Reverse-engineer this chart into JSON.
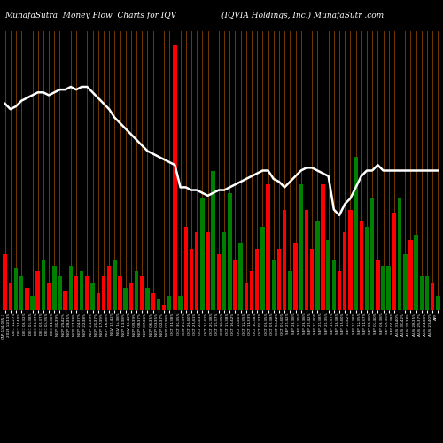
{
  "title_left": "MunafaSutra  Money Flow  Charts for IQV",
  "title_right": "(IQVIA Holdings, Inc.) MunafaSutr .com",
  "background_color": "#000000",
  "bar_grid_color": "#8B4500",
  "line_color": "#ffffff",
  "bar_colors": [
    "red",
    "red",
    "green",
    "green",
    "red",
    "green",
    "red",
    "green",
    "red",
    "green",
    "green",
    "red",
    "green",
    "red",
    "green",
    "red",
    "green",
    "red",
    "red",
    "red",
    "green",
    "red",
    "green",
    "red",
    "green",
    "red",
    "green",
    "red",
    "green",
    "red",
    "green",
    "red",
    "green",
    "red",
    "red",
    "red",
    "green",
    "red",
    "green",
    "red",
    "green",
    "green",
    "red",
    "green",
    "red",
    "red",
    "red",
    "green",
    "red",
    "green",
    "red",
    "red",
    "green",
    "red",
    "green",
    "red",
    "red",
    "green",
    "red",
    "green",
    "green",
    "red",
    "red",
    "red",
    "green",
    "red",
    "green",
    "green",
    "red",
    "green",
    "green",
    "red",
    "green",
    "green",
    "red",
    "green",
    "green",
    "green",
    "red",
    "green"
  ],
  "bar_heights": [
    20,
    10,
    15,
    12,
    8,
    5,
    14,
    18,
    10,
    16,
    12,
    7,
    16,
    12,
    14,
    12,
    10,
    6,
    12,
    16,
    18,
    12,
    8,
    10,
    14,
    12,
    8,
    6,
    4,
    2,
    5,
    95,
    5,
    30,
    22,
    28,
    40,
    28,
    50,
    20,
    28,
    42,
    18,
    24,
    10,
    14,
    22,
    30,
    45,
    18,
    22,
    36,
    14,
    24,
    45,
    36,
    22,
    32,
    45,
    25,
    18,
    14,
    28,
    36,
    55,
    32,
    30,
    40,
    18,
    16,
    16,
    35,
    40,
    20,
    25,
    27,
    12,
    12,
    10,
    5
  ],
  "line_values": [
    74,
    72,
    73,
    75,
    76,
    77,
    78,
    78,
    77,
    78,
    79,
    79,
    80,
    79,
    80,
    80,
    78,
    76,
    74,
    72,
    69,
    67,
    65,
    63,
    61,
    59,
    57,
    56,
    55,
    54,
    53,
    52,
    44,
    44,
    43,
    43,
    42,
    41,
    42,
    43,
    43,
    44,
    45,
    46,
    47,
    48,
    49,
    50,
    50,
    47,
    46,
    44,
    46,
    48,
    50,
    51,
    51,
    50,
    49,
    48,
    36,
    34,
    38,
    40,
    44,
    48,
    50,
    50,
    52,
    50,
    50,
    50,
    50,
    50,
    50,
    50,
    50,
    50,
    50,
    50
  ],
  "x_labels": [
    "CAP:104,085.3",
    "2023 12/13%",
    "DEC 12,27%",
    "DEC 11,40%",
    "DEC 08,32%",
    "DEC 07,38%",
    "DEC 06,37%",
    "DEC 05,37%",
    "DEC 04,35%",
    "DEC 01,36%",
    "NOV 30,39%",
    "NOV 29,42%",
    "NOV 28,35%",
    "NOV 27,38%",
    "NOV 24,37%",
    "NOV 22,38%",
    "NOV 21,39%",
    "NOV 20,37%",
    "NOV 17,39%",
    "NOV 16,38%",
    "NOV 15,42%",
    "NOV 14,38%",
    "NOV 13,38%",
    "NOV 10,42%",
    "NOV 09,39%",
    "NOV 08,37%",
    "NOV 07,36%",
    "NOV 06,35%",
    "NOV 03,35%",
    "NOV 02,37%",
    "NOV 01,38%",
    "OCT 31,38%",
    "OCT 30,35%",
    "OCT 27,37%",
    "OCT 26,40%",
    "OCT 25,41%",
    "OCT 24,43%",
    "OCT 23,41%",
    "OCT 20,38%",
    "OCT 19,37%",
    "OCT 18,35%",
    "OCT 17,38%",
    "OCT 16,42%",
    "OCT 13,40%",
    "OCT 12,35%",
    "OCT 11,33%",
    "OCT 10,38%",
    "OCT 09,37%",
    "OCT 06,35%",
    "OCT 05,38%",
    "OCT 04,42%",
    "OCT 03,40%",
    "SEP 29,42%",
    "SEP 28,38%",
    "SEP 27,35%",
    "SEP 26,38%",
    "SEP 25,42%",
    "SEP 22,40%",
    "SEP 21,38%",
    "SEP 20,35%",
    "SEP 19,37%",
    "SEP 18,38%",
    "SEP 15,40%",
    "SEP 14,42%",
    "SEP 13,38%",
    "SEP 12,35%",
    "SEP 11,37%",
    "SEP 08,38%",
    "SEP 07,40%",
    "SEP 06,38%",
    "SEP 05,35%",
    "SEP 01,38%",
    "AUG 31,40%",
    "AUG 30,42%",
    "AUG 29,38%",
    "AUG 28,35%",
    "AUG 25,37%",
    "AUG 24,38%",
    "AUG 23,40%",
    "APR"
  ]
}
